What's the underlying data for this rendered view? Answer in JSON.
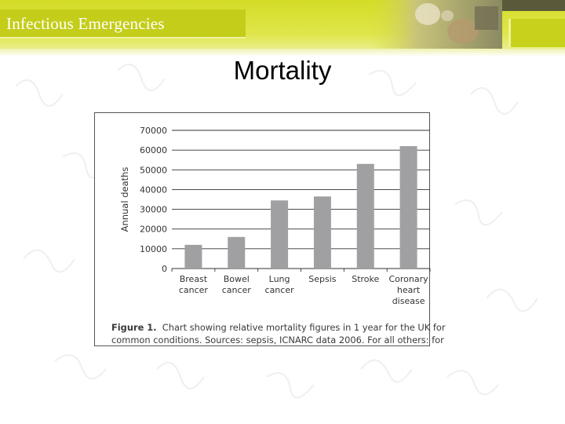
{
  "header": {
    "title": "Infectious Emergencies"
  },
  "slide": {
    "heading": "Mortality"
  },
  "figure": {
    "caption_label": "Figure 1.",
    "caption_line1": "Chart showing relative mortality figures in 1 year for the UK for",
    "caption_line2": "common conditions. Sources: sepsis, ICNARC data 2006. For all others: for"
  },
  "colors": {
    "header_yellow": "#d4dc26",
    "bar_gray": "#a0a0a2"
  },
  "chart_data": {
    "type": "bar",
    "title": "",
    "xlabel": "",
    "ylabel": "Annual deaths",
    "categories": [
      [
        "Breast",
        "cancer"
      ],
      [
        "Bowel",
        "cancer"
      ],
      [
        "Lung",
        "cancer"
      ],
      [
        "Sepsis"
      ],
      [
        "Stroke"
      ],
      [
        "Coronary",
        "heart",
        "disease"
      ]
    ],
    "values": [
      12000,
      16000,
      34500,
      36500,
      53000,
      62000
    ],
    "ylim": [
      0,
      70000
    ],
    "yticks": [
      "0",
      "10000",
      "20000",
      "30000",
      "40000",
      "50000",
      "60000",
      "70000"
    ],
    "grid": true
  }
}
